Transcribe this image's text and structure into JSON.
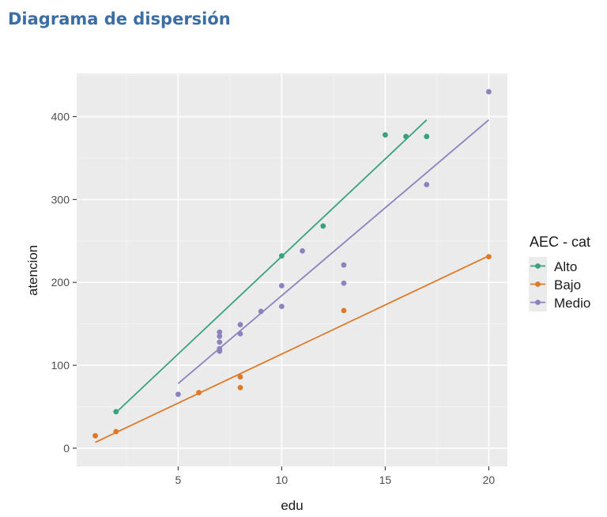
{
  "page": {
    "title": "Diagrama de dispersión"
  },
  "chart_data": {
    "type": "scatter",
    "title": "",
    "xlabel": "edu",
    "ylabel": "atencion",
    "xlim": [
      0.1,
      20.9
    ],
    "ylim": [
      -22,
      452
    ],
    "x_ticks": [
      5,
      10,
      15,
      20
    ],
    "y_ticks": [
      0,
      100,
      200,
      300,
      400
    ],
    "grid": true,
    "legend": {
      "title": "AEC - cat",
      "position": "right"
    },
    "series": [
      {
        "name": "Alto",
        "color": "#3aa17e",
        "points": [
          {
            "x": 2,
            "y": 44
          },
          {
            "x": 10,
            "y": 232
          },
          {
            "x": 12,
            "y": 268
          },
          {
            "x": 15,
            "y": 378
          },
          {
            "x": 16,
            "y": 376
          },
          {
            "x": 17,
            "y": 376
          }
        ],
        "fit_line": {
          "x": [
            2,
            17
          ],
          "y": [
            43,
            396
          ]
        }
      },
      {
        "name": "Bajo",
        "color": "#dc7a2a",
        "points": [
          {
            "x": 1,
            "y": 15
          },
          {
            "x": 2,
            "y": 20
          },
          {
            "x": 6,
            "y": 67
          },
          {
            "x": 8,
            "y": 86
          },
          {
            "x": 8,
            "y": 73
          },
          {
            "x": 13,
            "y": 166
          },
          {
            "x": 20,
            "y": 231
          }
        ],
        "fit_line": {
          "x": [
            1,
            20
          ],
          "y": [
            7,
            232
          ]
        }
      },
      {
        "name": "Medio",
        "color": "#8c82bd",
        "points": [
          {
            "x": 5,
            "y": 65
          },
          {
            "x": 7,
            "y": 140
          },
          {
            "x": 7,
            "y": 135
          },
          {
            "x": 7,
            "y": 128
          },
          {
            "x": 7,
            "y": 120
          },
          {
            "x": 7,
            "y": 117
          },
          {
            "x": 8,
            "y": 149
          },
          {
            "x": 8,
            "y": 138
          },
          {
            "x": 9,
            "y": 165
          },
          {
            "x": 10,
            "y": 196
          },
          {
            "x": 10,
            "y": 171
          },
          {
            "x": 11,
            "y": 238
          },
          {
            "x": 13,
            "y": 221
          },
          {
            "x": 13,
            "y": 199
          },
          {
            "x": 17,
            "y": 318
          },
          {
            "x": 20,
            "y": 430
          }
        ],
        "fit_line": {
          "x": [
            5,
            20
          ],
          "y": [
            78,
            396
          ]
        }
      }
    ]
  }
}
